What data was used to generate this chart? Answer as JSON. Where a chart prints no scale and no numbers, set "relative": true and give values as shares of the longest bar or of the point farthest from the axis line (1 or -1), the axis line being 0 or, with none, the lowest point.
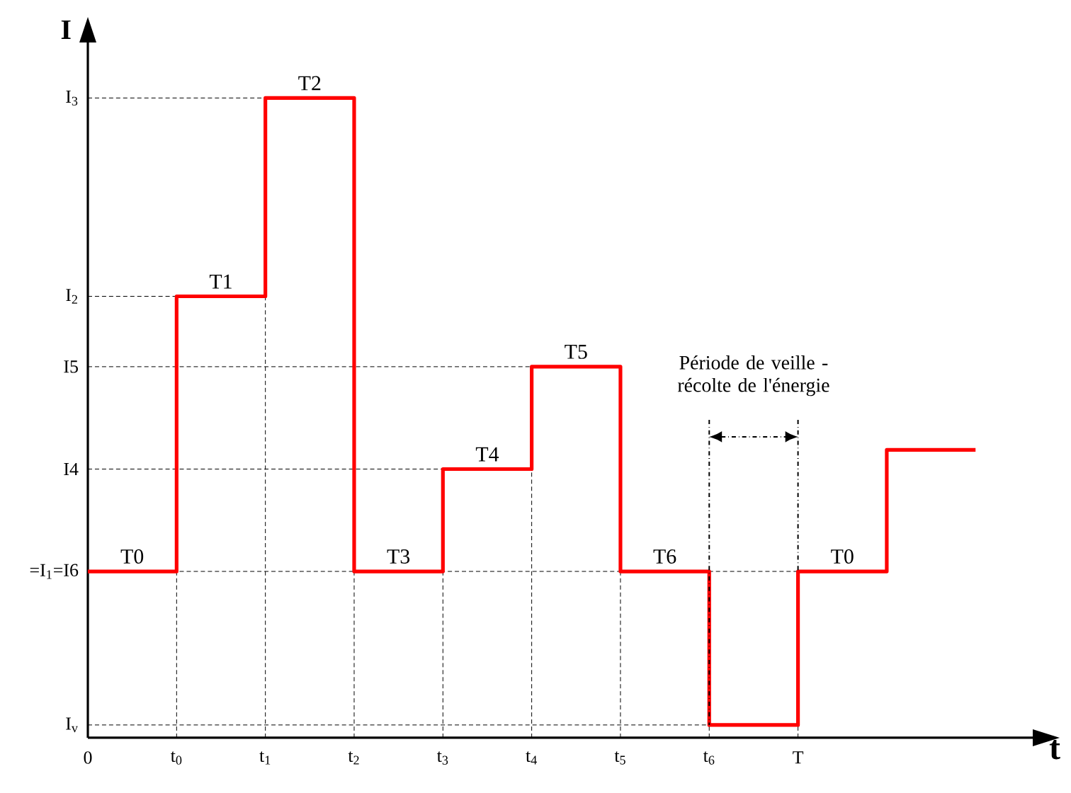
{
  "chart_data": {
    "type": "step",
    "relative": true,
    "xlabel": "t",
    "ylabel": "I",
    "categories": [
      "0",
      "t$_{0}$",
      "t$_{1}$",
      "t$_{2}$",
      "t$_{3}$",
      "t$_{4}$",
      "t$_{5}$",
      "t$_{6}$",
      "T",
      null,
      null
    ],
    "series": [
      {
        "color": "#ff0000",
        "values": [
          0.26,
          0.69,
          1,
          0.26,
          0.42,
          0.58,
          0.26,
          0.02,
          0.26,
          0.45,
          0.45
        ]
      }
    ],
    "ref_lines": [
      {
        "axis": "y",
        "value": 0.02,
        "label": "I$_{v}$"
      },
      {
        "axis": "y",
        "value": 0.26,
        "label": "=I$_{1}$=I6"
      },
      {
        "axis": "y",
        "value": 0.42,
        "label": "I4"
      },
      {
        "axis": "y",
        "value": 0.58,
        "label": "I5"
      },
      {
        "axis": "y",
        "value": 0.69,
        "label": "I$_{2}$"
      },
      {
        "axis": "y",
        "value": 1,
        "label": "I$_{3}$"
      },
      {
        "axis": "x",
        "value": "t$_{0}$"
      },
      {
        "axis": "x",
        "value": "t$_{1}$"
      },
      {
        "axis": "x",
        "value": "t$_{2}$"
      },
      {
        "axis": "x",
        "value": "t$_{3}$"
      },
      {
        "axis": "x",
        "value": "t$_{4}$"
      },
      {
        "axis": "x",
        "value": "t$_{5}$"
      },
      {
        "axis": "x",
        "value": "t$_{6}$"
      },
      {
        "axis": "x",
        "value": "T"
      }
    ],
    "annotations": [
      {
        "text": "T0",
        "x": "0",
        "y": 0.26
      },
      {
        "text": "T1",
        "x": "t$_{0}$",
        "y": 0.69
      },
      {
        "text": "T2",
        "x": "t$_{1}$",
        "y": 1
      },
      {
        "text": "T3",
        "x": "t$_{2}$",
        "y": 0.26
      },
      {
        "text": "T4",
        "x": "t$_{3}$",
        "y": 0.42
      },
      {
        "text": "T5",
        "x": "t$_{4}$",
        "y": 0.58
      },
      {
        "text": "T6",
        "x": "t$_{5}$",
        "y": 0.26
      },
      {
        "text": "T0",
        "x": "T",
        "y": 0.26
      },
      "Période de veille - récolte de l'énergie"
    ],
    "marker": "none",
    "line_style": "solid",
    "grid": false
  }
}
